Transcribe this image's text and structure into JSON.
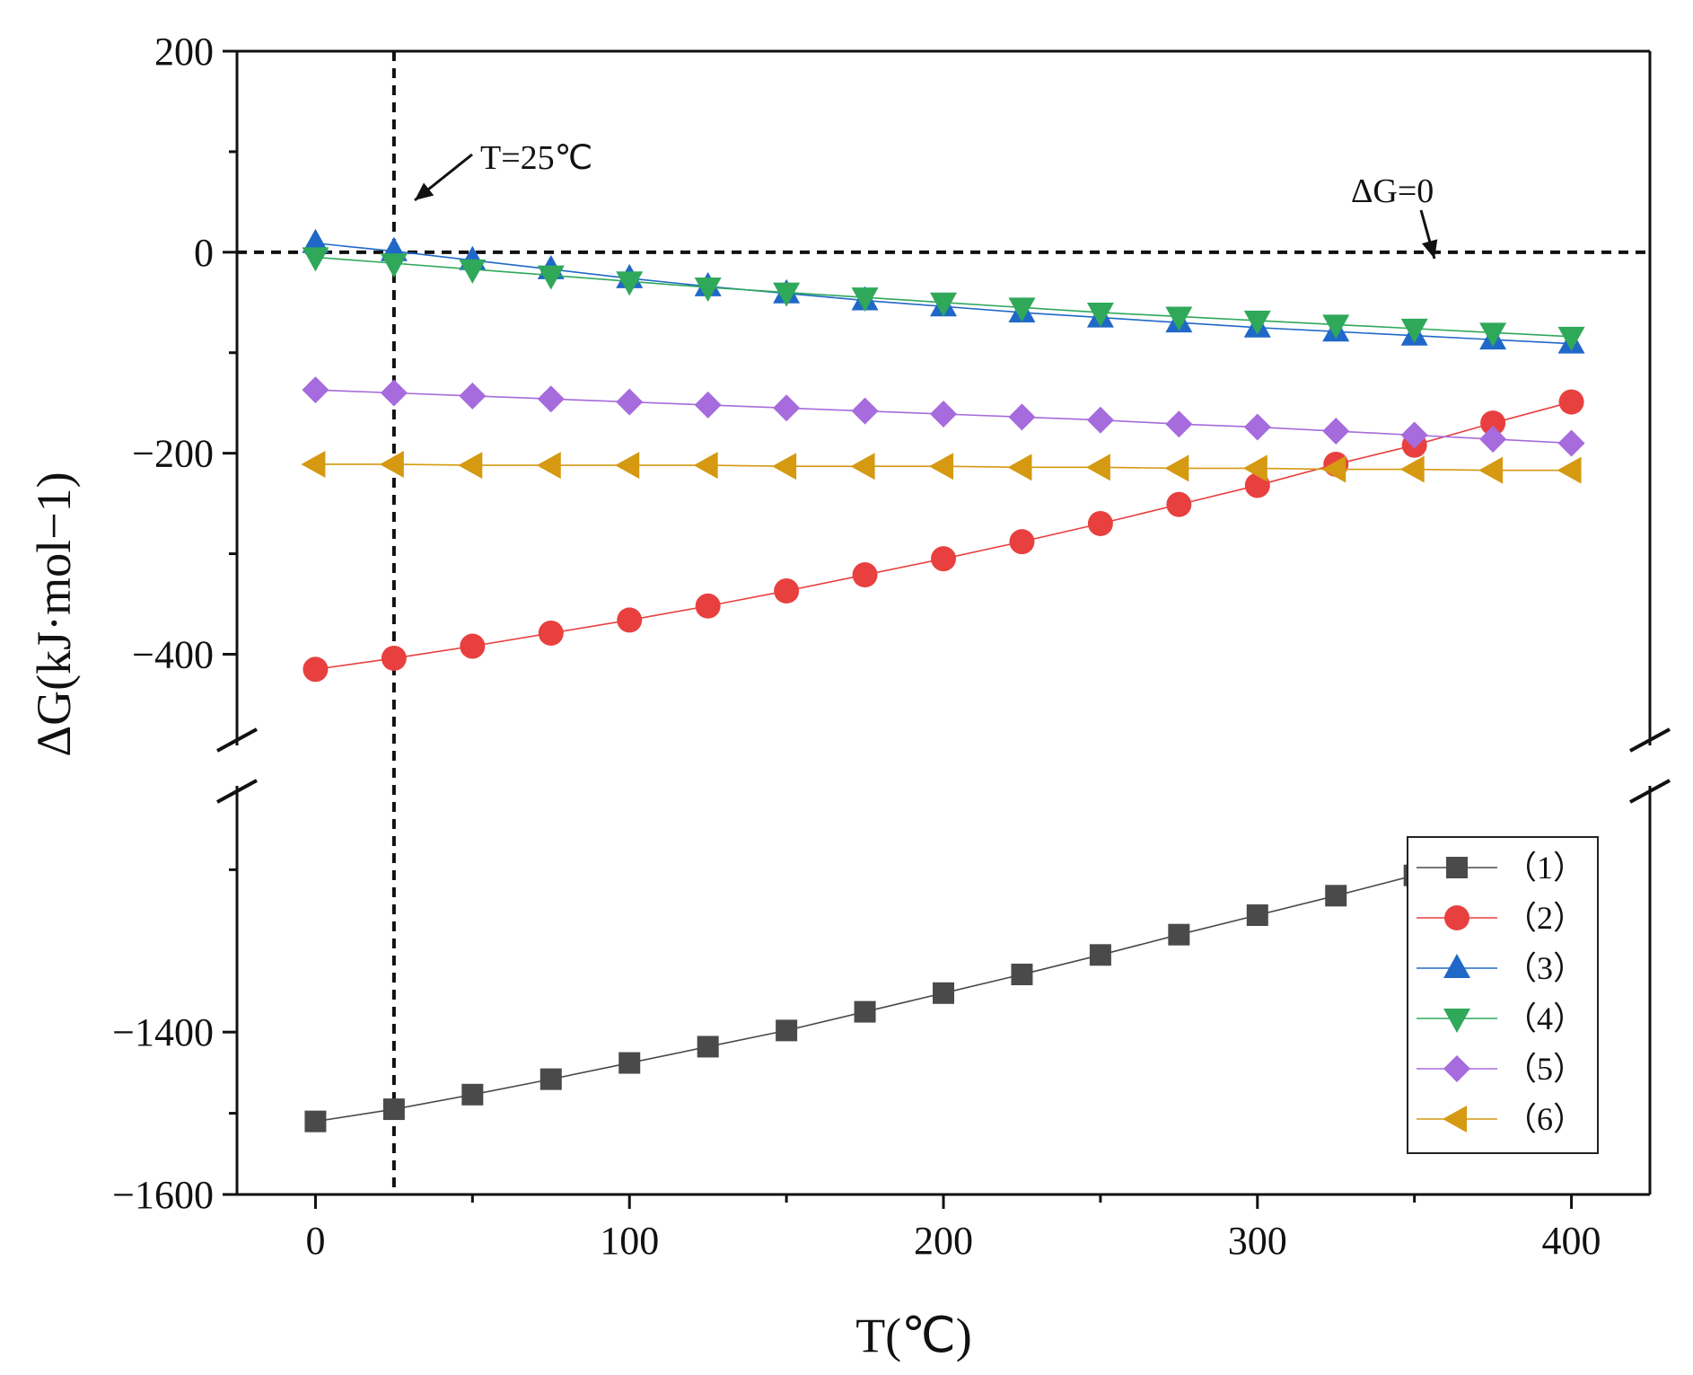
{
  "chart_data": {
    "type": "line",
    "xlabel": "T(℃)",
    "ylabel": "ΔG(kJ·mol−1)",
    "x_ticks": [
      "0",
      "100",
      "200",
      "300",
      "400"
    ],
    "y_ticks_upper": [
      "200",
      "0",
      "−200",
      "−400"
    ],
    "y_ticks_lower": [
      "−1400",
      "−1600"
    ],
    "xlim": [
      -25,
      425
    ],
    "ylim_upper": [
      -480,
      200
    ],
    "ylim_lower": [
      -1600,
      -1110
    ],
    "axis_break": true,
    "grid": false,
    "legend_position": "bottom-right",
    "annotations": {
      "vline_label": "T=25℃",
      "hline_label": "ΔG=0",
      "vline_x": 25,
      "hline_y": 0
    },
    "series": [
      {
        "name": "（1）",
        "marker": "square",
        "color": "#4a4a4a",
        "x": [
          0,
          25,
          50,
          75,
          100,
          125,
          150,
          175,
          200,
          225,
          250,
          275,
          300,
          325,
          350,
          375
        ],
        "values": [
          -1510,
          -1495,
          -1477,
          -1458,
          -1438,
          -1418,
          -1398,
          -1375,
          -1352,
          -1329,
          -1305,
          -1280,
          -1256,
          -1232,
          -1207,
          -1181
        ]
      },
      {
        "name": "（2）",
        "marker": "circle",
        "color": "#e8403f",
        "x": [
          0,
          25,
          50,
          75,
          100,
          125,
          150,
          175,
          200,
          225,
          250,
          275,
          300,
          325,
          350,
          375,
          400
        ],
        "values": [
          -415,
          -404,
          -392,
          -379,
          -366,
          -352,
          -337,
          -321,
          -305,
          -288,
          -270,
          -251,
          -232,
          -211,
          -192,
          -170,
          -149
        ]
      },
      {
        "name": "（3）",
        "marker": "triangle-up",
        "color": "#2068c8",
        "x": [
          0,
          25,
          50,
          75,
          100,
          125,
          150,
          175,
          200,
          225,
          250,
          275,
          300,
          325,
          350,
          375,
          400
        ],
        "values": [
          9,
          1,
          -8,
          -17,
          -26,
          -34,
          -41,
          -48,
          -54,
          -60,
          -65,
          -70,
          -75,
          -79,
          -83,
          -87,
          -91
        ]
      },
      {
        "name": "（4）",
        "marker": "triangle-down",
        "color": "#2fa85a",
        "x": [
          0,
          25,
          50,
          75,
          100,
          125,
          150,
          175,
          200,
          225,
          250,
          275,
          300,
          325,
          350,
          375,
          400
        ],
        "values": [
          -5,
          -11,
          -17,
          -23,
          -29,
          -35,
          -40,
          -45,
          -50,
          -55,
          -60,
          -64,
          -68,
          -72,
          -76,
          -80,
          -84
        ]
      },
      {
        "name": "（5）",
        "marker": "diamond",
        "color": "#a66bdc",
        "x": [
          0,
          25,
          50,
          75,
          100,
          125,
          150,
          175,
          200,
          225,
          250,
          275,
          300,
          325,
          350,
          375,
          400
        ],
        "values": [
          -137,
          -140,
          -143,
          -146,
          -149,
          -152,
          -155,
          -158,
          -161,
          -164,
          -167,
          -171,
          -174,
          -178,
          -182,
          -186,
          -190
        ]
      },
      {
        "name": "（6）",
        "marker": "triangle-left",
        "color": "#d59a12",
        "x": [
          0,
          25,
          50,
          75,
          100,
          125,
          150,
          175,
          200,
          225,
          250,
          275,
          300,
          325,
          350,
          375,
          400
        ],
        "values": [
          -211,
          -211,
          -212,
          -212,
          -212,
          -212,
          -213,
          -213,
          -213,
          -214,
          -214,
          -215,
          -215,
          -216,
          -216,
          -217,
          -217
        ]
      }
    ]
  }
}
